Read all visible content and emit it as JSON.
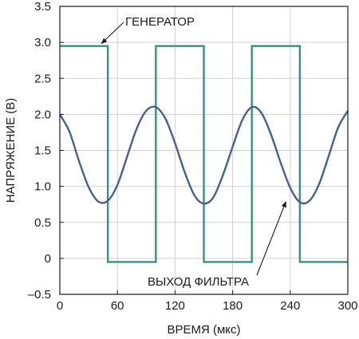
{
  "chart_data": {
    "type": "line",
    "title": "",
    "xlabel": "ВРЕМЯ (мкс)",
    "ylabel": "НАПРЯЖЕНИЕ (В)",
    "xlim": [
      0,
      300
    ],
    "ylim": [
      -0.5,
      3.5
    ],
    "x_ticks": [
      0,
      60,
      120,
      180,
      240,
      300
    ],
    "y_ticks": [
      -0.5,
      0,
      0.5,
      1.0,
      1.5,
      2.0,
      2.5,
      3.0,
      3.5
    ],
    "x_tick_labels": [
      "0",
      "60",
      "120",
      "180",
      "240",
      "300"
    ],
    "y_tick_labels": [
      "–0.5",
      "0",
      "0.5",
      "1.0",
      "1.5",
      "2.0",
      "2.5",
      "3.0",
      "3.5"
    ],
    "grid": true,
    "series": [
      {
        "name": "ГЕНЕРАТОР",
        "color": "#3f8f7c",
        "x": [
          0,
          50,
          50,
          100,
          100,
          150,
          150,
          200,
          200,
          250,
          250,
          300
        ],
        "y": [
          2.95,
          2.95,
          -0.05,
          -0.05,
          2.95,
          2.95,
          -0.05,
          -0.05,
          2.95,
          2.95,
          -0.05,
          -0.05
        ]
      },
      {
        "name": "ВЫХОД ФИЛЬТРА",
        "color": "#4a5e96",
        "x": [
          0,
          10,
          20,
          30,
          40,
          50,
          60,
          70,
          80,
          90,
          100,
          110,
          120,
          130,
          140,
          150,
          160,
          170,
          180,
          190,
          200,
          210,
          220,
          230,
          240,
          250,
          260,
          270,
          280,
          290,
          300
        ],
        "y": [
          2.0,
          1.76,
          1.35,
          0.99,
          0.79,
          0.8,
          1.02,
          1.41,
          1.8,
          2.05,
          2.1,
          1.94,
          1.6,
          1.2,
          0.88,
          0.76,
          0.85,
          1.16,
          1.55,
          1.92,
          2.1,
          2.02,
          1.72,
          1.33,
          0.98,
          0.78,
          0.8,
          1.03,
          1.42,
          1.82,
          2.05
        ]
      }
    ],
    "annotations": [
      {
        "text": "ГЕНЕРАТОР",
        "target_series": "ГЕНЕРАТОР",
        "target_x": 40,
        "target_y": 2.95
      },
      {
        "text": "ВЫХОД ФИЛЬТРА",
        "target_series": "ВЫХОД ФИЛЬТРА",
        "target_x": 233,
        "target_y": 0.82
      }
    ]
  }
}
